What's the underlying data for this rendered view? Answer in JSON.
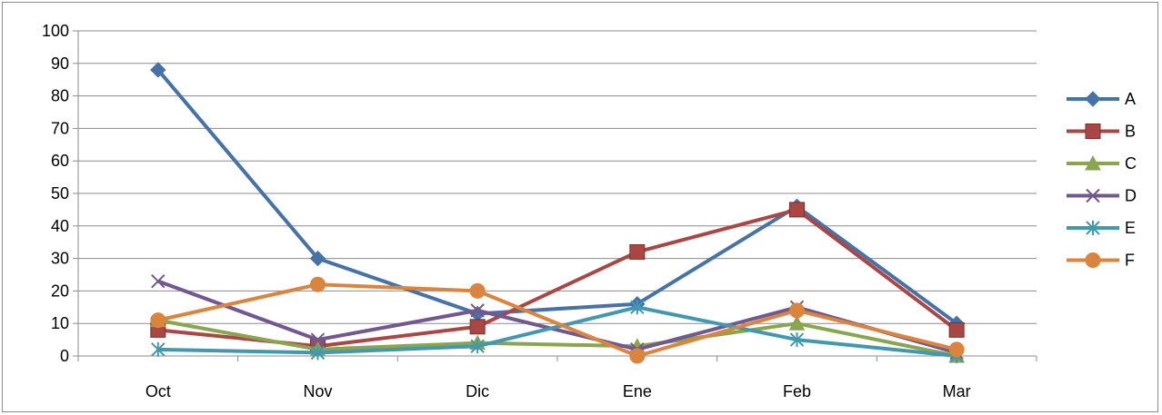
{
  "chart_data": {
    "type": "line",
    "categories": [
      "Oct",
      "Nov",
      "Dic",
      "Ene",
      "Feb",
      "Mar"
    ],
    "ylim": [
      0,
      100
    ],
    "yticks": [
      0,
      10,
      20,
      30,
      40,
      50,
      60,
      70,
      80,
      90,
      100
    ],
    "grid": true,
    "legend_position": "right",
    "series": [
      {
        "name": "A",
        "color": "#4572A7",
        "marker": "diamond",
        "values": [
          88,
          30,
          13,
          16,
          46,
          10
        ]
      },
      {
        "name": "B",
        "color": "#AA4643",
        "marker": "square",
        "values": [
          8,
          3,
          9,
          32,
          45,
          8
        ]
      },
      {
        "name": "C",
        "color": "#89A54E",
        "marker": "triangle",
        "values": [
          11,
          2,
          4,
          3,
          10,
          0
        ]
      },
      {
        "name": "D",
        "color": "#71588F",
        "marker": "x",
        "values": [
          23,
          5,
          14,
          2,
          15,
          1
        ]
      },
      {
        "name": "E",
        "color": "#4198AF",
        "marker": "star",
        "values": [
          2,
          1,
          3,
          15,
          5,
          0
        ]
      },
      {
        "name": "F",
        "color": "#DB843D",
        "marker": "circle",
        "values": [
          11,
          22,
          20,
          0,
          14,
          2
        ]
      }
    ]
  }
}
